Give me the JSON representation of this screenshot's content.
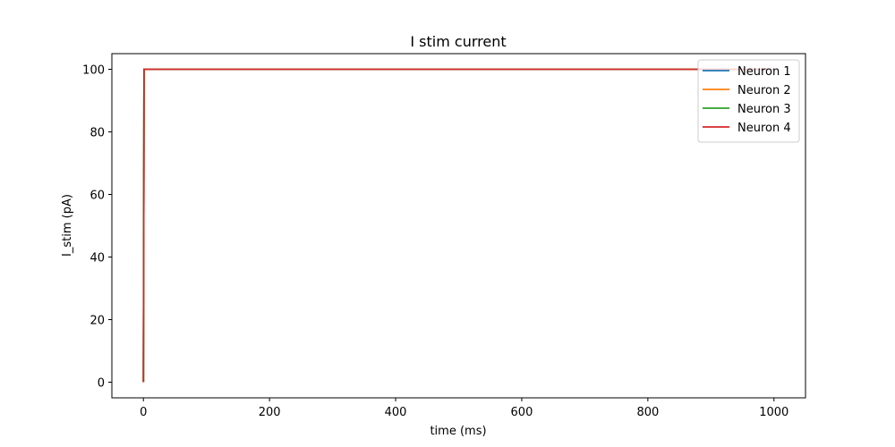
{
  "chart_data": {
    "type": "line",
    "title": "I stim current",
    "xlabel": "time (ms)",
    "ylabel": "I_stim (pA)",
    "xlim": [
      -50,
      1050
    ],
    "ylim": [
      -5,
      105
    ],
    "xticks": [
      0,
      200,
      400,
      600,
      800,
      1000
    ],
    "yticks": [
      0,
      20,
      40,
      60,
      80,
      100
    ],
    "grid": false,
    "legend_position": "top-right",
    "series": [
      {
        "name": "Neuron 1",
        "color": "#1f77b4",
        "x": [
          0,
          1,
          1000
        ],
        "y": [
          0,
          100,
          100
        ]
      },
      {
        "name": "Neuron 2",
        "color": "#ff7f0e",
        "x": [
          0,
          1,
          1000
        ],
        "y": [
          0,
          100,
          100
        ]
      },
      {
        "name": "Neuron 3",
        "color": "#2ca02c",
        "x": [
          0,
          1,
          1000
        ],
        "y": [
          0,
          100,
          100
        ]
      },
      {
        "name": "Neuron 4",
        "color": "#d62728",
        "x": [
          0,
          1,
          1000
        ],
        "y": [
          0,
          100,
          100
        ]
      }
    ]
  }
}
